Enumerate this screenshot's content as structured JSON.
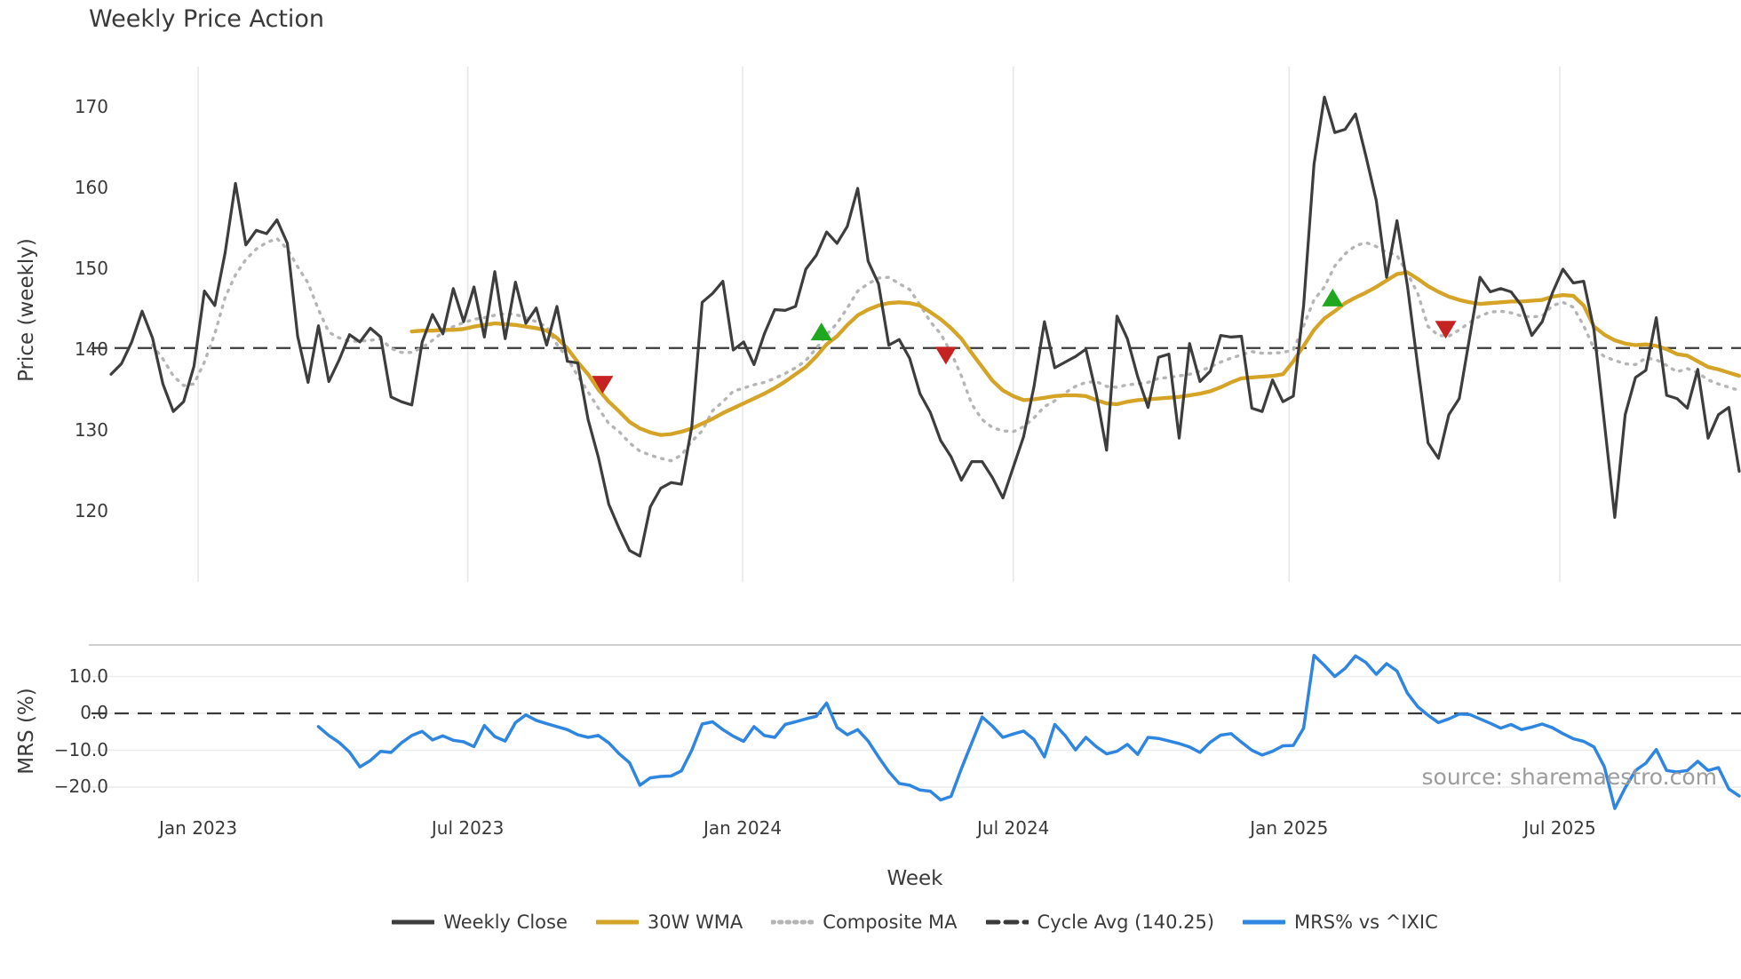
{
  "title": "Weekly Price Action",
  "source": "source: sharemaestro.com",
  "axes": {
    "price_label": "Price (weekly)",
    "mrs_label": "MRS (%)",
    "week_label": "Week",
    "price_ticks": [
      120,
      130,
      140,
      150,
      160,
      170
    ],
    "mrs_ticks": [
      -20.0,
      -10.0,
      0.0,
      10.0
    ],
    "x_ticks": [
      {
        "week": 8.4,
        "label": "Jan 2023"
      },
      {
        "week": 34.4,
        "label": "Jul 2023"
      },
      {
        "week": 60.9,
        "label": "Jan 2024"
      },
      {
        "week": 87.0,
        "label": "Jul 2024"
      },
      {
        "week": 113.6,
        "label": "Jan 2025"
      },
      {
        "week": 139.7,
        "label": "Jul 2025"
      }
    ]
  },
  "legend": [
    {
      "label": "Weekly Close",
      "color": "#3d3d3d",
      "style": "solid"
    },
    {
      "label": "30W WMA",
      "color": "#d5a426",
      "style": "solid"
    },
    {
      "label": "Composite MA",
      "color": "#b5b5b5",
      "style": "dotted"
    },
    {
      "label": "Cycle Avg (140.25)",
      "color": "#3a3a3a",
      "style": "dashed"
    },
    {
      "label": "MRS% vs ^IXIC",
      "color": "#2f86e0",
      "style": "solid"
    }
  ],
  "colors": {
    "close": "#3d3d3d",
    "wma": "#d5a426",
    "composite": "#b5b5b5",
    "cycle": "#3a3a3a",
    "mrs": "#2f86e0",
    "zero": "#3a3a3a",
    "buy": "#1fa81f",
    "sell": "#c52222",
    "grid": "#e7e7e7",
    "mrs_grid": "#ececec",
    "mrs_spine": "#c9c9c9"
  },
  "chart_data": {
    "type": "line",
    "x_unit": "week_index",
    "cycle_avg": 140.25,
    "panels": [
      {
        "name": "price",
        "ylabel": "Price (weekly)",
        "ylim": [
          112,
          176
        ],
        "series": [
          {
            "name": "Weekly Close",
            "start": 0,
            "values": [
              137.0,
              138.3,
              141.0,
              144.8,
              141.5,
              135.8,
              132.4,
              133.6,
              138.0,
              147.3,
              145.5,
              152.0,
              160.6,
              153.0,
              154.8,
              154.4,
              156.1,
              153.2,
              141.7,
              136.0,
              143.0,
              136.1,
              138.8,
              141.9,
              141.0,
              142.7,
              141.6,
              134.2,
              133.6,
              133.2,
              141.0,
              144.4,
              142.0,
              147.6,
              143.5,
              147.8,
              141.6,
              149.7,
              141.4,
              148.4,
              143.3,
              145.2,
              140.6,
              145.4,
              138.6,
              138.4,
              131.4,
              126.7,
              120.9,
              117.9,
              115.2,
              114.5,
              120.6,
              122.9,
              123.6,
              123.4,
              130.5,
              145.9,
              147.0,
              148.5,
              140.0,
              141.0,
              138.2,
              142.0,
              145.0,
              144.9,
              145.4,
              150.0,
              151.7,
              154.6,
              153.2,
              155.3,
              160.0,
              151.0,
              148.2,
              140.6,
              141.3,
              139.0,
              134.6,
              132.3,
              128.8,
              126.8,
              123.9,
              126.2,
              126.2,
              124.2,
              121.7,
              125.5,
              129.3,
              135.5,
              143.5,
              137.8,
              138.5,
              139.2,
              140.1,
              134.6,
              127.6,
              144.2,
              141.4,
              136.7,
              132.9,
              139.1,
              139.5,
              129.1,
              140.8,
              136.1,
              137.4,
              141.8,
              141.6,
              141.7,
              132.8,
              132.4,
              136.3,
              133.6,
              134.3,
              145.5,
              163.0,
              171.3,
              166.9,
              167.3,
              169.2,
              164.0,
              158.5,
              149.0,
              156.0,
              148.0,
              138.0,
              128.5,
              126.6,
              132.0,
              134.0,
              141.5,
              149.0,
              147.2,
              147.6,
              147.2,
              145.5,
              141.8,
              143.5,
              147.1,
              150.0,
              148.3,
              148.5,
              142.5,
              131.0,
              119.3,
              132.0,
              136.6,
              137.5,
              144.0,
              134.4,
              134.0,
              132.8,
              137.6,
              129.1,
              132.0,
              132.9,
              125.0
            ]
          },
          {
            "name": "30W WMA",
            "start": 29,
            "values": [
              142.3,
              142.4,
              142.4,
              142.5,
              142.5,
              142.6,
              142.9,
              143.1,
              143.3,
              143.2,
              143.1,
              142.9,
              142.7,
              142.4,
              141.5,
              140.2,
              138.5,
              137.0,
              135.1,
              133.6,
              132.4,
              131.1,
              130.3,
              129.8,
              129.5,
              129.6,
              129.9,
              130.3,
              130.9,
              131.5,
              132.2,
              132.8,
              133.4,
              134.0,
              134.6,
              135.3,
              136.1,
              137.0,
              137.9,
              139.2,
              140.7,
              141.7,
              143.1,
              144.3,
              145.0,
              145.5,
              145.8,
              145.9,
              145.8,
              145.5,
              144.7,
              143.8,
              142.7,
              141.4,
              139.6,
              137.9,
              136.2,
              135.0,
              134.3,
              133.8,
              133.9,
              134.1,
              134.3,
              134.4,
              134.4,
              134.3,
              133.8,
              133.4,
              133.3,
              133.6,
              133.8,
              133.9,
              134.0,
              134.1,
              134.2,
              134.4,
              134.6,
              134.9,
              135.4,
              136.0,
              136.5,
              136.6,
              136.7,
              136.8,
              137.0,
              138.6,
              140.5,
              142.5,
              143.9,
              144.8,
              145.8,
              146.5,
              147.1,
              147.8,
              148.6,
              149.4,
              149.6,
              148.8,
              147.9,
              147.2,
              146.6,
              146.2,
              145.9,
              145.7,
              145.8,
              145.9,
              146.0,
              146.0,
              146.1,
              146.2,
              146.6,
              146.8,
              146.7,
              145.5,
              142.9,
              141.9,
              141.2,
              140.8,
              140.6,
              140.7,
              140.5,
              140.1,
              139.5,
              139.3,
              138.6,
              137.9,
              137.6,
              137.2,
              136.8
            ]
          },
          {
            "name": "Composite MA",
            "start": 4,
            "values": [
              140.6,
              138.9,
              136.8,
              135.6,
              135.8,
              138.5,
              142.0,
              146.5,
              149.3,
              151.2,
              152.5,
              153.3,
              153.8,
              152.5,
              150.3,
              148.3,
              145.0,
              142.2,
              141.5,
              141.1,
              141.1,
              141.2,
              141.4,
              140.2,
              139.7,
              139.7,
              140.3,
              141.2,
              142.2,
              142.9,
              143.4,
              143.8,
              144.0,
              144.3,
              144.5,
              144.4,
              144.0,
              143.5,
              142.9,
              140.7,
              139.0,
              136.8,
              134.8,
              132.8,
              130.9,
              129.9,
              128.5,
              127.5,
              127.0,
              126.6,
              126.3,
              127.0,
              128.7,
              130.0,
              132.5,
              133.6,
              134.9,
              135.3,
              135.7,
              136.0,
              136.5,
              137.1,
              137.8,
              138.7,
              140.2,
              141.9,
              143.3,
              145.2,
              147.3,
              148.2,
              148.9,
              149.0,
              148.2,
              147.5,
              145.6,
              143.5,
              142.0,
              139.7,
              136.8,
              133.3,
              131.4,
              130.4,
              130.0,
              129.9,
              130.5,
              131.6,
              133.0,
              133.7,
              134.7,
              135.5,
              136.0,
              136.1,
              135.5,
              135.4,
              135.7,
              135.8,
              136.0,
              136.5,
              136.6,
              136.8,
              137.0,
              137.4,
              137.9,
              138.5,
              139.0,
              139.4,
              139.8,
              139.6,
              139.6,
              139.7,
              140.0,
              143.0,
              146.2,
              147.8,
              150.4,
              151.9,
              152.9,
              153.3,
              152.8,
              152.1,
              151.7,
              149.5,
              147.0,
              142.9,
              141.8,
              141.7,
              142.5,
              143.4,
              144.2,
              144.7,
              144.8,
              144.6,
              144.2,
              144.1,
              144.2,
              145.5,
              145.9,
              145.3,
              143.0,
              140.2,
              139.2,
              138.7,
              138.3,
              138.2,
              139.0,
              138.8,
              138.1,
              137.3,
              137.7,
              137.2,
              136.3,
              135.8,
              135.4,
              135.0
            ]
          },
          {
            "name": "Cycle Avg",
            "const": 140.25
          }
        ],
        "signals": [
          {
            "week": 47.4,
            "value": 135.7,
            "type": "sell"
          },
          {
            "week": 68.5,
            "value": 142.3,
            "type": "buy"
          },
          {
            "week": 80.5,
            "value": 139.3,
            "type": "sell"
          },
          {
            "week": 117.8,
            "value": 146.5,
            "type": "buy"
          },
          {
            "week": 128.7,
            "value": 142.5,
            "type": "sell"
          }
        ]
      },
      {
        "name": "mrs",
        "ylabel": "MRS (%)",
        "ylim": [
          -28,
          18
        ],
        "series": [
          {
            "name": "MRS% vs ^IXIC",
            "start": 20,
            "values": [
              -3.6,
              -6.0,
              -7.9,
              -10.5,
              -14.5,
              -12.8,
              -10.3,
              -10.6,
              -8.0,
              -6.0,
              -4.9,
              -7.2,
              -6.1,
              -7.3,
              -7.7,
              -9.0,
              -3.3,
              -6.3,
              -7.5,
              -2.5,
              -0.4,
              -1.9,
              -2.8,
              -3.6,
              -4.4,
              -5.8,
              -6.5,
              -6.0,
              -8.0,
              -11.0,
              -13.4,
              -19.5,
              -17.5,
              -17.1,
              -17.0,
              -15.6,
              -10.0,
              -2.9,
              -2.3,
              -4.4,
              -6.2,
              -7.6,
              -3.6,
              -6.0,
              -6.5,
              -3.0,
              -2.3,
              -1.5,
              -0.8,
              2.8,
              -3.8,
              -5.8,
              -4.4,
              -7.5,
              -11.8,
              -15.8,
              -19.0,
              -19.5,
              -20.8,
              -21.1,
              -23.5,
              -22.5,
              -15.0,
              -8.0,
              -1.0,
              -3.5,
              -6.5,
              -5.6,
              -4.8,
              -7.1,
              -11.8,
              -3.0,
              -6.0,
              -9.9,
              -6.5,
              -9.0,
              -11.0,
              -10.3,
              -8.4,
              -11.1,
              -6.5,
              -6.8,
              -7.5,
              -8.2,
              -9.1,
              -10.6,
              -7.8,
              -5.9,
              -5.5,
              -7.8,
              -10.0,
              -11.3,
              -10.3,
              -8.8,
              -8.7,
              -4.0,
              15.7,
              13.0,
              10.0,
              12.2,
              15.6,
              13.8,
              10.6,
              13.5,
              11.5,
              5.5,
              1.8,
              -0.5,
              -2.5,
              -1.5,
              -0.2,
              -0.3,
              -1.5,
              -2.7,
              -4.0,
              -3.0,
              -4.4,
              -3.7,
              -2.9,
              -3.9,
              -5.5,
              -6.9,
              -7.6,
              -9.1,
              -14.5,
              -25.8,
              -20.2,
              -15.5,
              -13.5,
              -9.8,
              -15.5,
              -15.9,
              -15.5,
              -13.0,
              -15.5,
              -14.7,
              -20.5,
              -22.4
            ]
          },
          {
            "name": "Zero",
            "const": 0
          }
        ]
      }
    ]
  }
}
